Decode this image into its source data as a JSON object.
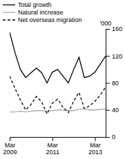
{
  "chart_data": {
    "type": "line",
    "y_label": "'000",
    "categories": [
      "Mar\n2009",
      null,
      null,
      null,
      null,
      null,
      null,
      null,
      "Mar\n2011",
      null,
      null,
      null,
      null,
      null,
      null,
      null,
      "Mar\n2013",
      null,
      null
    ],
    "series": [
      {
        "name": "Total growth",
        "color": "#000000",
        "line_style": "solid",
        "values": [
          155,
          125,
          100,
          88,
          95,
          102,
          95,
          80,
          96,
          100,
          90,
          80,
          100,
          118,
          88,
          90,
          96,
          108,
          120
        ]
      },
      {
        "name": "Natural increase",
        "color": "#aaaaaa",
        "line_style": "solid",
        "values": [
          37,
          37,
          38,
          37,
          38,
          39,
          39,
          38,
          39,
          40,
          40,
          39,
          39,
          41,
          42,
          40,
          40,
          41,
          41
        ]
      },
      {
        "name": "Net overseas migration",
        "color": "#000000",
        "line_style": "dashed",
        "values": [
          90,
          72,
          55,
          40,
          48,
          60,
          52,
          34,
          50,
          56,
          44,
          36,
          53,
          66,
          42,
          46,
          53,
          62,
          74
        ]
      }
    ],
    "ylim": [
      0,
      160
    ],
    "yticks": [
      0,
      40,
      80,
      120,
      160
    ],
    "grid": false,
    "legend": "top"
  }
}
